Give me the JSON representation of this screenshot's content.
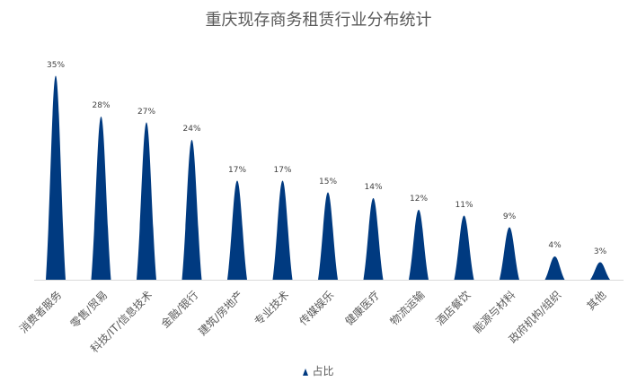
{
  "chart_data": {
    "type": "bar",
    "bar_shape": "peak",
    "title": "重庆现存商务租赁行业分布统计",
    "categories": [
      "消费者服务",
      "零售/贸易",
      "科技/IT/信息技术",
      "金融/银行",
      "建筑/房地产",
      "专业技术",
      "传媒娱乐",
      "健康医疗",
      "物流运输",
      "酒店餐饮",
      "能源与材料",
      "政府机构/组织",
      "其他"
    ],
    "series": [
      {
        "name": "占比",
        "values": [
          35,
          28,
          27,
          24,
          17,
          17,
          15,
          14,
          12,
          11,
          9,
          4,
          3
        ],
        "color": "#003a80"
      }
    ],
    "value_labels": [
      "35%",
      "28%",
      "27%",
      "24%",
      "17%",
      "17%",
      "15%",
      "14%",
      "12%",
      "11%",
      "9%",
      "4%",
      "3%"
    ],
    "xlabel": "",
    "ylabel": "",
    "y_axis_visible": false,
    "grid": false,
    "legend_position": "bottom"
  },
  "legend": {
    "label": "占比"
  }
}
